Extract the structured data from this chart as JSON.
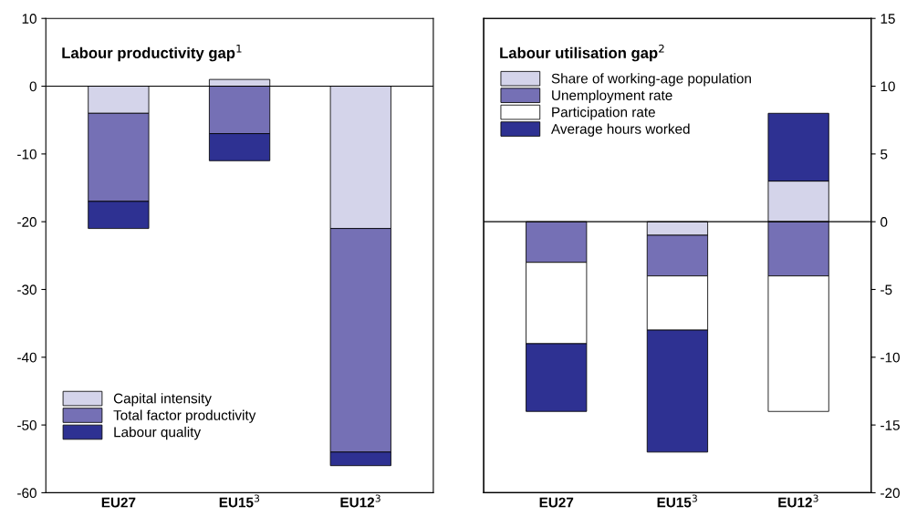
{
  "chart_data": [
    {
      "type": "bar",
      "stacked": true,
      "title": "Labour productivity gap$^{1}$",
      "categories": [
        "EU27",
        "EU15$^{3}$",
        "EU12$^{3}$"
      ],
      "legend": "bottom left",
      "ylim": [
        -60,
        10
      ],
      "yticks": [
        -60,
        -50,
        -40,
        -30,
        -20,
        -10,
        0,
        10
      ],
      "ref_lines": [
        {
          "axis": "y",
          "value": 0
        }
      ],
      "series": [
        {
          "name": "Capital intensity",
          "color": "#d4d4ea",
          "values": [
            -4,
            1,
            -21
          ]
        },
        {
          "name": "Total factor productivity",
          "color": "#7570b5",
          "values": [
            -13,
            -7,
            -33
          ]
        },
        {
          "name": "Labour quality",
          "color": "#2e3192",
          "values": [
            -4,
            -4,
            -2
          ]
        }
      ]
    },
    {
      "type": "bar",
      "stacked": true,
      "title": "Labour utilisation gap$^{2}$",
      "categories": [
        "EU27",
        "EU15$^{3}$",
        "EU12$^{3}$"
      ],
      "legend": "top left",
      "y2lim": [
        -20,
        15
      ],
      "y2ticks": [
        -20,
        -15,
        -10,
        -5,
        0,
        5,
        10,
        15
      ],
      "ref_lines": [
        {
          "axis": "y2",
          "value": 0
        }
      ],
      "series": [
        {
          "name": "Share of working-age population",
          "color": "#d4d4ea",
          "axis": "y2",
          "values": [
            0,
            -1,
            3
          ]
        },
        {
          "name": "Unemployment rate",
          "color": "#7570b5",
          "axis": "y2",
          "values": [
            -3,
            -3,
            -4
          ]
        },
        {
          "name": "Participation rate",
          "color": "#ffffff",
          "axis": "y2",
          "values": [
            -6,
            -4,
            -10
          ]
        },
        {
          "name": "Average hours worked",
          "color": "#2e3192",
          "axis": "y2",
          "values": [
            -5,
            -9,
            5
          ]
        }
      ]
    }
  ]
}
